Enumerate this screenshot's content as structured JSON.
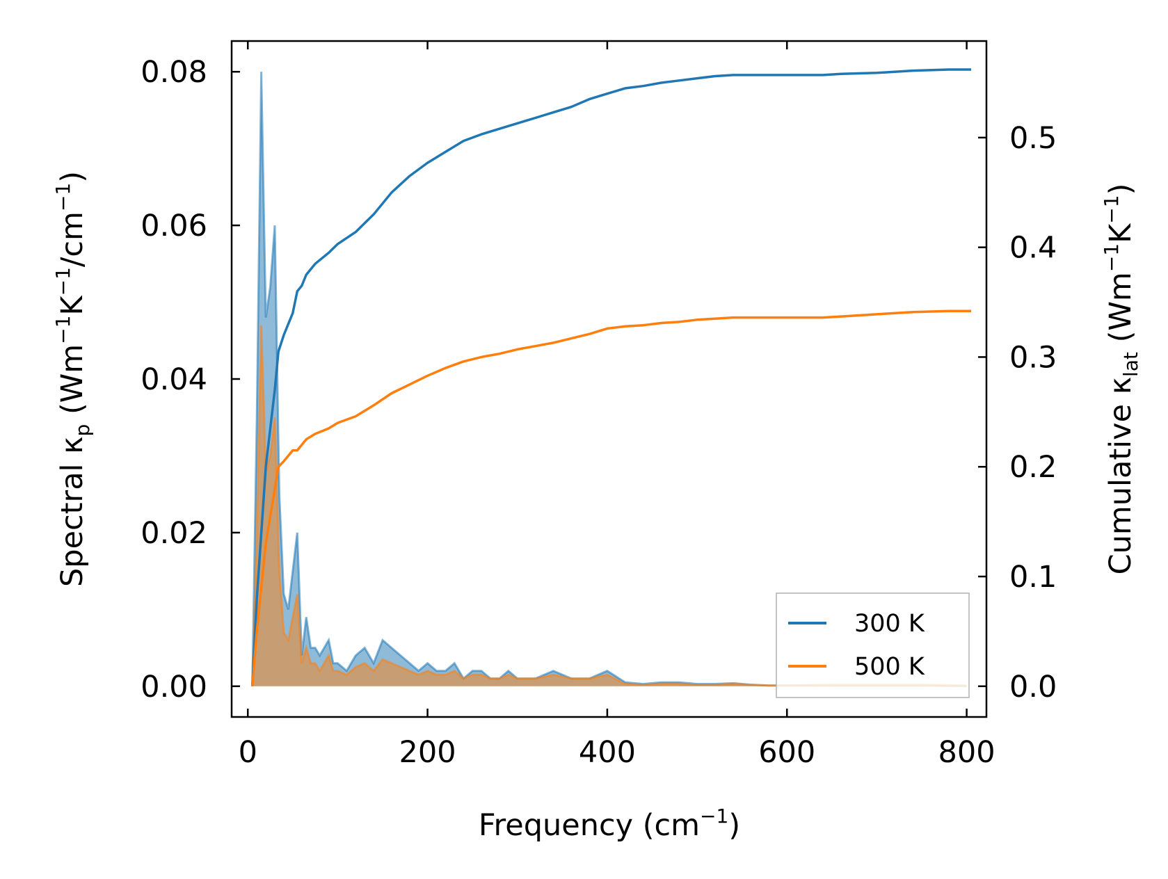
{
  "chart_data": {
    "type": "line",
    "title": "",
    "xlabel": "Frequency (cm",
    "xlabel_exp": "−1",
    "xlabel_end": ")",
    "ylabel_left": {
      "pre": "Spectral κ",
      "sub": "p",
      "mid1": " (Wm",
      "sup1": "−1",
      "mid2": "K",
      "sup2": "−1",
      "mid3": "/cm",
      "sup3": "−1",
      "end": ")"
    },
    "ylabel_right": {
      "pre": "Cumulative κ",
      "sub": "lat",
      "mid1": " (Wm",
      "sup1": "−1",
      "mid2": "K",
      "sup2": "−1",
      "end": ")"
    },
    "xlim": [
      -18,
      822
    ],
    "ylim_left": [
      -0.004,
      0.084
    ],
    "ylim_right": [
      -0.028,
      0.588
    ],
    "x_ticks": [
      "0",
      "200",
      "400",
      "600",
      "800"
    ],
    "y_left_ticks": [
      "0.00",
      "0.02",
      "0.04",
      "0.06",
      "0.08"
    ],
    "y_right_ticks": [
      "0.0",
      "0.1",
      "0.2",
      "0.3",
      "0.4",
      "0.5"
    ],
    "legend": {
      "position": "lower right",
      "entries": [
        "300 K",
        "500 K"
      ]
    },
    "series": [
      {
        "name": "300 K",
        "color": "#1f77b4",
        "axis": "right",
        "kind": "cumulative",
        "x": [
          5,
          10,
          20,
          30,
          34,
          40,
          50,
          55,
          60,
          65,
          75,
          90,
          100,
          120,
          140,
          160,
          180,
          200,
          220,
          240,
          260,
          280,
          300,
          320,
          340,
          360,
          380,
          400,
          420,
          440,
          460,
          480,
          500,
          520,
          540,
          560,
          600,
          640,
          660,
          700,
          740,
          780,
          805
        ],
        "y": [
          0.0,
          0.08,
          0.2,
          0.27,
          0.305,
          0.32,
          0.34,
          0.36,
          0.365,
          0.375,
          0.385,
          0.395,
          0.403,
          0.414,
          0.43,
          0.45,
          0.465,
          0.477,
          0.487,
          0.497,
          0.503,
          0.508,
          0.513,
          0.518,
          0.523,
          0.528,
          0.535,
          0.54,
          0.545,
          0.547,
          0.55,
          0.552,
          0.554,
          0.556,
          0.557,
          0.557,
          0.557,
          0.557,
          0.558,
          0.559,
          0.561,
          0.562,
          0.562
        ]
      },
      {
        "name": "500 K",
        "color": "#ff7f0e",
        "axis": "right",
        "kind": "cumulative",
        "x": [
          5,
          10,
          20,
          30,
          34,
          40,
          50,
          55,
          60,
          65,
          75,
          90,
          100,
          120,
          140,
          160,
          180,
          200,
          220,
          240,
          260,
          280,
          300,
          320,
          340,
          360,
          380,
          400,
          420,
          440,
          460,
          480,
          500,
          520,
          540,
          560,
          600,
          640,
          660,
          700,
          740,
          780,
          805
        ],
        "y": [
          0.0,
          0.05,
          0.13,
          0.18,
          0.2,
          0.205,
          0.215,
          0.215,
          0.22,
          0.225,
          0.23,
          0.235,
          0.24,
          0.246,
          0.256,
          0.267,
          0.275,
          0.283,
          0.29,
          0.296,
          0.3,
          0.303,
          0.307,
          0.31,
          0.313,
          0.317,
          0.321,
          0.326,
          0.328,
          0.329,
          0.331,
          0.332,
          0.334,
          0.335,
          0.336,
          0.336,
          0.336,
          0.336,
          0.337,
          0.339,
          0.341,
          0.342,
          0.342
        ]
      },
      {
        "name": "300 K spectral",
        "color": "#1f77b4",
        "axis": "left",
        "kind": "spectral",
        "x": [
          5,
          10,
          15,
          20,
          25,
          30,
          35,
          40,
          45,
          50,
          55,
          60,
          65,
          70,
          75,
          80,
          85,
          90,
          95,
          100,
          110,
          120,
          130,
          140,
          150,
          160,
          170,
          180,
          190,
          200,
          210,
          220,
          230,
          240,
          250,
          260,
          270,
          280,
          290,
          300,
          320,
          340,
          360,
          380,
          400,
          420,
          440,
          460,
          480,
          500,
          520,
          540,
          560,
          580,
          600,
          650,
          700,
          750,
          800
        ],
        "y": [
          0.0,
          0.035,
          0.08,
          0.048,
          0.052,
          0.06,
          0.025,
          0.012,
          0.01,
          0.015,
          0.02,
          0.004,
          0.009,
          0.005,
          0.005,
          0.004,
          0.005,
          0.006,
          0.003,
          0.003,
          0.002,
          0.004,
          0.005,
          0.003,
          0.006,
          0.005,
          0.004,
          0.003,
          0.002,
          0.003,
          0.002,
          0.002,
          0.003,
          0.001,
          0.002,
          0.002,
          0.001,
          0.001,
          0.002,
          0.001,
          0.001,
          0.002,
          0.001,
          0.001,
          0.002,
          0.0005,
          0.0003,
          0.0005,
          0.0005,
          0.0003,
          0.0003,
          0.0004,
          0.0002,
          0.0001,
          0.0001,
          0.0001,
          0.0001,
          0.0001,
          0.0
        ]
      },
      {
        "name": "500 K spectral",
        "color": "#ff7f0e",
        "axis": "left",
        "kind": "spectral",
        "x": [
          5,
          10,
          15,
          20,
          25,
          30,
          35,
          40,
          45,
          50,
          55,
          60,
          65,
          70,
          75,
          80,
          85,
          90,
          95,
          100,
          110,
          120,
          130,
          140,
          150,
          160,
          170,
          180,
          190,
          200,
          210,
          220,
          230,
          240,
          250,
          260,
          270,
          280,
          290,
          300,
          320,
          340,
          360,
          380,
          400,
          420,
          440,
          460,
          480,
          500,
          520,
          540,
          560,
          580,
          600,
          650,
          700,
          750,
          800
        ],
        "y": [
          0.0,
          0.02,
          0.047,
          0.028,
          0.03,
          0.035,
          0.015,
          0.007,
          0.006,
          0.009,
          0.012,
          0.003,
          0.005,
          0.003,
          0.003,
          0.002,
          0.003,
          0.004,
          0.002,
          0.002,
          0.0015,
          0.0025,
          0.003,
          0.002,
          0.0035,
          0.003,
          0.0025,
          0.002,
          0.0015,
          0.002,
          0.0015,
          0.0015,
          0.002,
          0.001,
          0.0015,
          0.0015,
          0.001,
          0.001,
          0.0015,
          0.001,
          0.001,
          0.0015,
          0.001,
          0.001,
          0.0015,
          0.0003,
          0.0002,
          0.0003,
          0.0003,
          0.0002,
          0.0002,
          0.0003,
          0.0002,
          0.0001,
          0.0001,
          0.0002,
          0.0002,
          0.0002,
          0.0001
        ]
      }
    ]
  }
}
